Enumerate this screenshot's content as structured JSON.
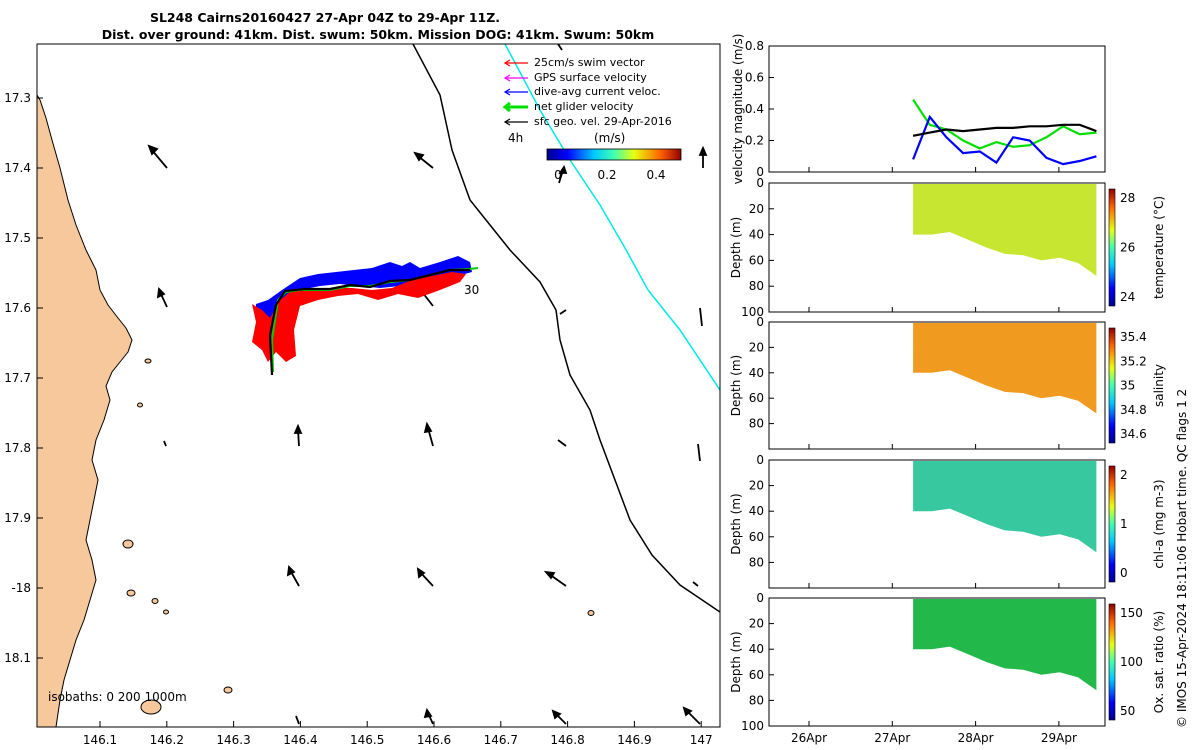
{
  "title_line1": "SL248 Cairns20160427 27-Apr 04Z to 29-Apr 11Z.",
  "title_line2": "Dist. over ground: 41km. Dist. swum: 50km. Mission DOG: 41km. Swum: 50km",
  "copyright": "© IMOS 15-Apr-2024 18:11:06 Hobart time. QC flags 1  2",
  "legend": {
    "items": [
      {
        "label": "25cm/s swim vector",
        "color": "#ff0000"
      },
      {
        "label": "GPS surface velocity",
        "color": "#ff00ff"
      },
      {
        "label": "dive-avg current veloc.",
        "color": "#0000ff"
      },
      {
        "label": "net glider velocity",
        "color": "#00e000"
      },
      {
        "label": "sfc geo. vel. 29-Apr-2016",
        "color": "#000000"
      }
    ],
    "time_label": "4h",
    "colorbar_title": "(m/s)",
    "colorbar_ticks": [
      "0",
      "0.2",
      "0.4"
    ]
  },
  "map": {
    "lon_ticks": [
      "146.1",
      "146.2",
      "146.3",
      "146.4",
      "146.5",
      "146.6",
      "146.7",
      "146.8",
      "146.9",
      "147"
    ],
    "lat_ticks": [
      "17.3",
      "17.4",
      "17.5",
      "17.6",
      "17.7",
      "17.8",
      "17.9",
      "-18",
      "18.1"
    ],
    "isobaths_label": "isobaths: 0   200  1000m",
    "track_label": "30",
    "land_color": "#f7c89b"
  },
  "chart_data": [
    {
      "type": "line",
      "id": "velocity",
      "ylabel": "velocity magnitude (m/s)",
      "ylim": [
        0,
        0.8
      ],
      "yticks": [
        "0",
        "0.2",
        "0.4",
        "0.6",
        "0.8"
      ],
      "xticks": [
        "26Apr",
        "27Apr",
        "28Apr",
        "29Apr"
      ],
      "x_days": [
        27.25,
        27.45,
        27.65,
        27.85,
        28.05,
        28.25,
        28.45,
        28.65,
        28.85,
        29.05,
        29.25,
        29.45
      ],
      "series": [
        {
          "color": "#00e000",
          "values": [
            0.46,
            0.3,
            0.27,
            0.2,
            0.15,
            0.19,
            0.16,
            0.17,
            0.22,
            0.29,
            0.24,
            0.25
          ]
        },
        {
          "color": "#0000ff",
          "values": [
            0.08,
            0.35,
            0.22,
            0.12,
            0.13,
            0.06,
            0.22,
            0.2,
            0.09,
            0.05,
            0.07,
            0.1
          ]
        },
        {
          "color": "#000000",
          "values": [
            0.23,
            0.25,
            0.27,
            0.26,
            0.27,
            0.28,
            0.28,
            0.29,
            0.29,
            0.3,
            0.3,
            0.26
          ]
        }
      ]
    },
    {
      "type": "heatmap",
      "id": "temperature",
      "ylabel": "Depth (m)",
      "yticks": [
        "0",
        "20",
        "40",
        "60",
        "80",
        "100"
      ],
      "colorbar_label": "temperature (°C)",
      "colorbar_ticks": [
        "24",
        "26",
        "28"
      ],
      "fill_color": "#c6e632"
    },
    {
      "type": "heatmap",
      "id": "salinity",
      "ylabel": "Depth (m)",
      "yticks": [
        "0",
        "20",
        "40",
        "60",
        "80"
      ],
      "colorbar_label": "salinity",
      "colorbar_ticks": [
        "34.6",
        "34.8",
        "35",
        "35.2",
        "35.4"
      ],
      "fill_color": "#f09a20"
    },
    {
      "type": "heatmap",
      "id": "chla",
      "ylabel": "Depth (m)",
      "yticks": [
        "0",
        "20",
        "40",
        "60",
        "80"
      ],
      "colorbar_label": "chl-a (mg m-3)",
      "colorbar_ticks": [
        "0",
        "1",
        "2"
      ],
      "fill_color": "#38c8a0"
    },
    {
      "type": "heatmap",
      "id": "oxygen",
      "ylabel": "Depth (m)",
      "yticks": [
        "0",
        "20",
        "40",
        "60",
        "80",
        "100"
      ],
      "colorbar_label": "Ox. sat. ratio (%)",
      "colorbar_ticks": [
        "50",
        "100",
        "150"
      ],
      "fill_color": "#22b84a"
    }
  ]
}
